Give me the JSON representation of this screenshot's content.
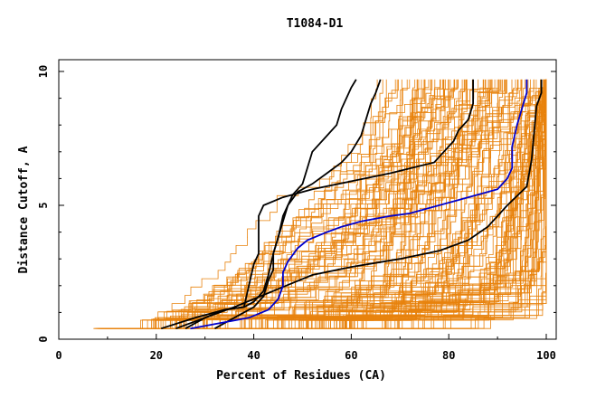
{
  "chart_data": {
    "type": "line",
    "title": "T1084-D1",
    "xlabel": "Percent of Residues (CA)",
    "ylabel": "Distance Cutoff, A",
    "xlim": [
      0,
      100
    ],
    "ylim": [
      0,
      10
    ],
    "x_ticks": [
      0,
      20,
      40,
      60,
      80,
      100
    ],
    "y_ticks": [
      0,
      5,
      10
    ],
    "grid": false,
    "legend": "none",
    "background_series_color": "#e8820c",
    "highlight_colors": {
      "black": "#000000",
      "blue": "#0000cc"
    },
    "highlight_series": [
      {
        "color": "black",
        "points": [
          [
            24,
            0.4
          ],
          [
            30,
            0.8
          ],
          [
            36,
            1.2
          ],
          [
            40,
            1.5
          ],
          [
            44,
            1.8
          ],
          [
            48,
            2.1
          ],
          [
            52,
            2.4
          ],
          [
            60,
            2.7
          ],
          [
            70,
            3.0
          ],
          [
            78,
            3.3
          ],
          [
            84,
            3.7
          ],
          [
            88,
            4.2
          ],
          [
            92,
            5.0
          ],
          [
            96,
            5.7
          ],
          [
            97,
            6.7
          ],
          [
            98,
            8.7
          ],
          [
            99,
            9.2
          ],
          [
            99,
            9.7
          ]
        ]
      },
      {
        "color": "black",
        "points": [
          [
            21,
            0.4
          ],
          [
            28,
            0.8
          ],
          [
            34,
            1.1
          ],
          [
            38,
            1.2
          ],
          [
            40,
            1.4
          ],
          [
            42,
            1.8
          ],
          [
            43,
            2.4
          ],
          [
            44,
            3.2
          ],
          [
            45,
            3.8
          ],
          [
            46,
            4.4
          ],
          [
            47,
            5.0
          ],
          [
            49,
            5.5
          ],
          [
            52,
            5.8
          ],
          [
            55,
            6.2
          ],
          [
            58,
            6.6
          ],
          [
            60,
            7.0
          ],
          [
            62,
            7.6
          ],
          [
            63,
            8.2
          ],
          [
            64,
            8.8
          ],
          [
            65,
            9.2
          ],
          [
            66,
            9.7
          ]
        ]
      },
      {
        "color": "black",
        "points": [
          [
            26,
            0.4
          ],
          [
            30,
            0.8
          ],
          [
            34,
            1.1
          ],
          [
            38,
            1.2
          ],
          [
            39,
            2.0
          ],
          [
            40,
            2.8
          ],
          [
            41,
            3.2
          ],
          [
            41,
            3.8
          ],
          [
            41,
            4.6
          ],
          [
            42,
            5.0
          ],
          [
            46,
            5.3
          ],
          [
            52,
            5.6
          ],
          [
            60,
            5.9
          ],
          [
            68,
            6.2
          ],
          [
            77,
            6.6
          ],
          [
            79,
            7.0
          ],
          [
            81,
            7.4
          ],
          [
            82,
            7.8
          ],
          [
            84,
            8.2
          ],
          [
            85,
            8.8
          ],
          [
            85,
            9.7
          ]
        ]
      },
      {
        "color": "black",
        "points": [
          [
            32,
            0.4
          ],
          [
            36,
            0.8
          ],
          [
            40,
            1.2
          ],
          [
            42,
            1.6
          ],
          [
            43,
            2.2
          ],
          [
            44,
            2.6
          ],
          [
            44,
            3.2
          ],
          [
            45,
            3.8
          ],
          [
            46,
            4.6
          ],
          [
            47,
            5.0
          ],
          [
            48,
            5.4
          ],
          [
            50,
            5.8
          ],
          [
            51,
            6.4
          ],
          [
            52,
            7.0
          ],
          [
            55,
            7.6
          ],
          [
            57,
            8.0
          ],
          [
            58,
            8.6
          ],
          [
            59,
            9.0
          ],
          [
            60,
            9.4
          ],
          [
            61,
            9.7
          ]
        ]
      },
      {
        "color": "blue",
        "points": [
          [
            27,
            0.4
          ],
          [
            33,
            0.6
          ],
          [
            39,
            0.8
          ],
          [
            43,
            1.1
          ],
          [
            45,
            1.5
          ],
          [
            46,
            2.0
          ],
          [
            46,
            2.5
          ],
          [
            47,
            2.9
          ],
          [
            49,
            3.4
          ],
          [
            51,
            3.7
          ],
          [
            55,
            4.0
          ],
          [
            58,
            4.2
          ],
          [
            62,
            4.4
          ],
          [
            68,
            4.6
          ],
          [
            72,
            4.7
          ],
          [
            78,
            5.0
          ],
          [
            84,
            5.3
          ],
          [
            90,
            5.6
          ],
          [
            92,
            6.0
          ],
          [
            93,
            6.4
          ],
          [
            93,
            7.2
          ],
          [
            94,
            8.0
          ],
          [
            95,
            8.6
          ],
          [
            96,
            9.2
          ],
          [
            96,
            9.7
          ]
        ]
      }
    ],
    "background_series_generated": 150
  }
}
